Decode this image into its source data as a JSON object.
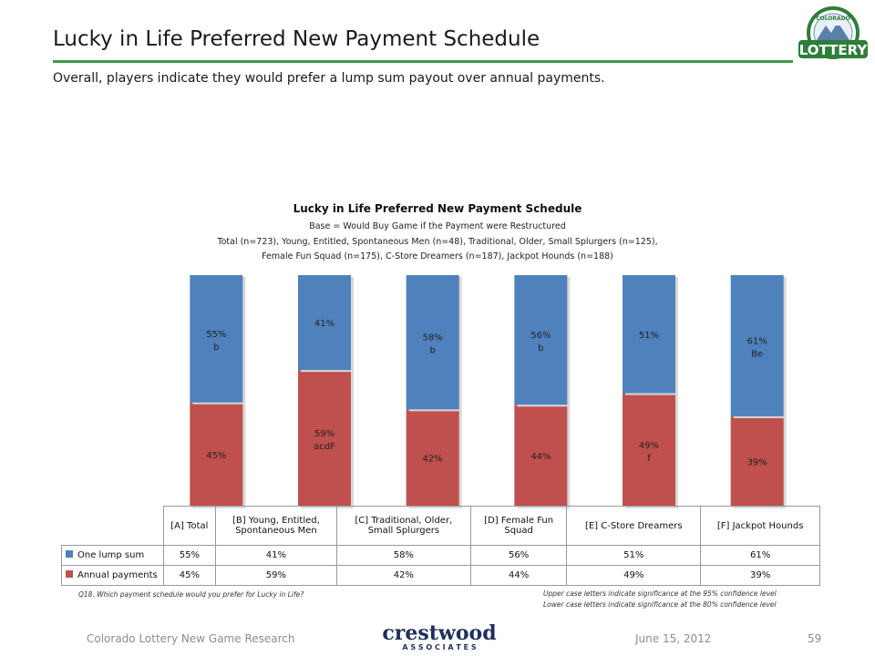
{
  "slide": {
    "title": "Lucky in Life Preferred New Payment Schedule",
    "subtitle": "Overall, players indicate they would prefer a lump sum payout over annual payments.",
    "logo_text": {
      "top": "COLORADO",
      "main": "LOTTERY"
    },
    "accent_color": "#3d9b48"
  },
  "chart_data": {
    "type": "bar",
    "stacked": true,
    "title": "Lucky in Life Preferred New Payment Schedule",
    "notes": [
      "Base = Would Buy Game if the Payment were Restructured",
      "Total (n=723), Young, Entitled, Spontaneous Men (n=48), Traditional, Older, Small Splurgers (n=125),",
      "Female Fun Squad (n=175), C-Store Dreamers (n=187), Jackpot Hounds (n=188)"
    ],
    "categories": [
      "[A] Total",
      "[B] Young, Entitled, Spontaneous Men",
      "[C] Traditional, Older, Small Splurgers",
      "[D] Female Fun Squad",
      "[E] C-Store Dreamers",
      "[F] Jackpot Hounds"
    ],
    "category_lines": [
      [
        "[A] Total"
      ],
      [
        "[B] Young, Entitled,",
        "Spontaneous Men"
      ],
      [
        "[C] Traditional, Older,",
        "Small Splurgers"
      ],
      [
        "[D] Female Fun",
        "Squad"
      ],
      [
        "[E] C-Store Dreamers"
      ],
      [
        "[F] Jackpot Hounds"
      ]
    ],
    "ylim": [
      0,
      100
    ],
    "series": [
      {
        "name": "One lump sum",
        "color": "#4f81bd",
        "values": [
          55,
          41,
          58,
          56,
          51,
          61
        ],
        "labels": [
          "55%",
          "41%",
          "58%",
          "56%",
          "51%",
          "61%"
        ],
        "sig": [
          "b",
          "",
          "b",
          "b",
          "",
          "Be"
        ]
      },
      {
        "name": "Annual payments",
        "color": "#c0504d",
        "values": [
          45,
          59,
          42,
          44,
          49,
          39
        ],
        "labels": [
          "45%",
          "59%",
          "42%",
          "44%",
          "49%",
          "39%"
        ],
        "sig": [
          "",
          "acdF",
          "",
          "",
          "f",
          ""
        ]
      }
    ]
  },
  "footnotes": {
    "question": "Q18. Which payment schedule would you prefer for Lucky in Life?",
    "sig_upper": "Upper case letters indicate significance at the 95% confidence level",
    "sig_lower": "Lower case letters indicate significance at the 80% confidence level"
  },
  "footer": {
    "left": "Colorado Lottery New Game Research",
    "date": "June 15, 2012",
    "page": "59",
    "brand_main": "crestwood",
    "brand_sub": "A S S O C I A T E S"
  }
}
